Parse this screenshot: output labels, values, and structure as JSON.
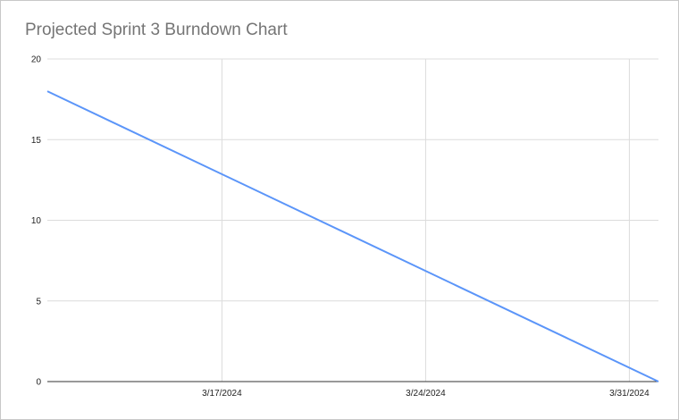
{
  "chart_data": {
    "type": "line",
    "title": "Projected Sprint 3 Burndown Chart",
    "xlabel": "",
    "ylabel": "",
    "x_ticks": [
      "3/17/2024",
      "3/24/2024",
      "3/31/2024"
    ],
    "y_ticks": [
      "0",
      "5",
      "10",
      "15",
      "20"
    ],
    "xlim": [
      "2024-03-11",
      "2024-04-01"
    ],
    "ylim": [
      0,
      20
    ],
    "grid": true,
    "legend": "none",
    "series": [
      {
        "color": "#5b95f9",
        "points": [
          {
            "x": "2024-03-11",
            "y": 18
          },
          {
            "x": "2024-04-01",
            "y": 0
          }
        ]
      }
    ]
  }
}
